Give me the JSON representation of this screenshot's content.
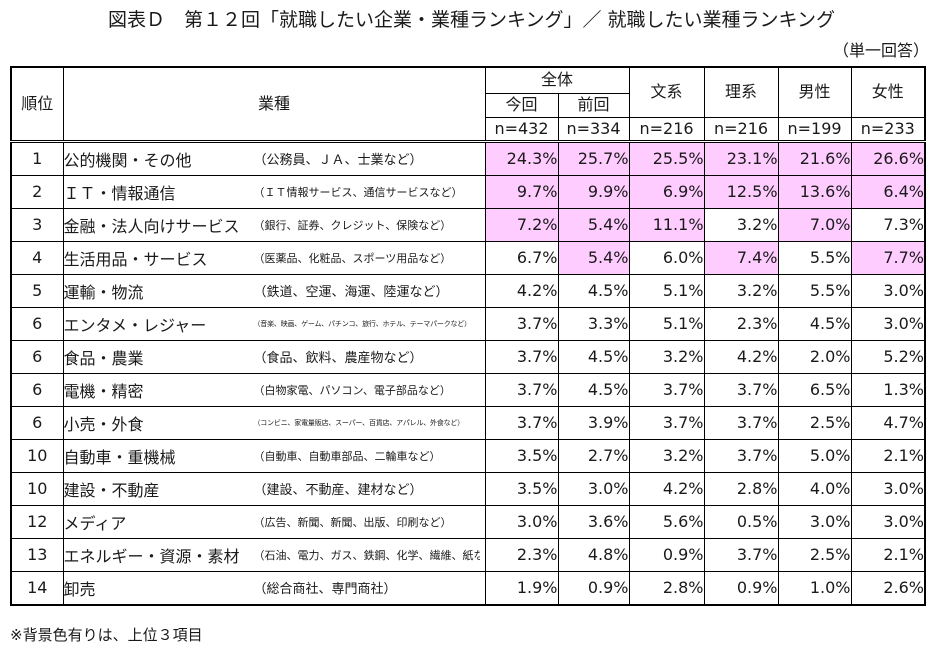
{
  "title": "図表Ｄ　第１２回「就職したい企業・業種ランキング」／ 就職したい業種ランキング",
  "unit": "（単一回答）",
  "colors": {
    "highlight": "#ffccff",
    "border": "#000000"
  },
  "headers": {
    "rank": "順位",
    "industry": "業種",
    "overall": "全体",
    "current": "今回",
    "previous": "前回",
    "current_n": "n=432",
    "previous_n": "n=334",
    "humanities": "文系",
    "humanities_n": "n=216",
    "science": "理系",
    "science_n": "n=216",
    "male": "男性",
    "male_n": "n=199",
    "female": "女性",
    "female_n": "n=233"
  },
  "rows": [
    {
      "rank": "1",
      "name": "公的機関・その他",
      "examples": "（公務員、ＪＡ、士業など）",
      "ex_size": "l",
      "values": [
        "24.3%",
        "25.7%",
        "25.5%",
        "23.1%",
        "21.6%",
        "26.6%"
      ],
      "highlight": [
        true,
        true,
        true,
        true,
        true,
        true
      ]
    },
    {
      "rank": "2",
      "name": "ＩＴ・情報通信",
      "examples": "（ＩＴ情報サービス、通信サービスなど）",
      "ex_size": "m",
      "values": [
        "9.7%",
        "9.9%",
        "6.9%",
        "12.5%",
        "13.6%",
        "6.4%"
      ],
      "highlight": [
        true,
        true,
        true,
        true,
        true,
        true
      ]
    },
    {
      "rank": "3",
      "name": "金融・法人向けサービス",
      "examples": "（銀行、証券、クレジット、保険など）",
      "ex_size": "m",
      "values": [
        "7.2%",
        "5.4%",
        "11.1%",
        "3.2%",
        "7.0%",
        "7.3%"
      ],
      "highlight": [
        true,
        true,
        true,
        false,
        true,
        false
      ]
    },
    {
      "rank": "4",
      "name": "生活用品・サービス",
      "examples": "（医薬品、化粧品、スポーツ用品など）",
      "ex_size": "m",
      "values": [
        "6.7%",
        "5.4%",
        "6.0%",
        "7.4%",
        "5.5%",
        "7.7%"
      ],
      "highlight": [
        false,
        true,
        false,
        true,
        false,
        true
      ]
    },
    {
      "rank": "5",
      "name": "運輸・物流",
      "examples": "（鉄道、空運、海運、陸運など）",
      "ex_size": "l",
      "values": [
        "4.2%",
        "4.5%",
        "5.1%",
        "3.2%",
        "5.5%",
        "3.0%"
      ],
      "highlight": [
        false,
        false,
        false,
        false,
        false,
        false
      ]
    },
    {
      "rank": "6",
      "name": "エンタメ・レジャー",
      "examples": "（音楽、映画、ゲーム、パチンコ、旅行、ホテル、テーマパークなど）",
      "ex_size": "s",
      "values": [
        "3.7%",
        "3.3%",
        "5.1%",
        "2.3%",
        "4.5%",
        "3.0%"
      ],
      "highlight": [
        false,
        false,
        false,
        false,
        false,
        false
      ]
    },
    {
      "rank": "6",
      "name": "食品・農業",
      "examples": "（食品、飲料、農産物など）",
      "ex_size": "l",
      "values": [
        "3.7%",
        "4.5%",
        "3.2%",
        "4.2%",
        "2.0%",
        "5.2%"
      ],
      "highlight": [
        false,
        false,
        false,
        false,
        false,
        false
      ]
    },
    {
      "rank": "6",
      "name": "電機・精密",
      "examples": "（白物家電、パソコン、電子部品など）",
      "ex_size": "m",
      "values": [
        "3.7%",
        "4.5%",
        "3.7%",
        "3.7%",
        "6.5%",
        "1.3%"
      ],
      "highlight": [
        false,
        false,
        false,
        false,
        false,
        false
      ]
    },
    {
      "rank": "6",
      "name": "小売・外食",
      "examples": "（コンビニ、家電量販店、スーパー、百貨店、アパレル、外食など）",
      "ex_size": "s",
      "values": [
        "3.7%",
        "3.9%",
        "3.7%",
        "3.7%",
        "2.5%",
        "4.7%"
      ],
      "highlight": [
        false,
        false,
        false,
        false,
        false,
        false
      ]
    },
    {
      "rank": "10",
      "name": "自動車・重機械",
      "examples": "（自動車、自動車部品、二輪車など）",
      "ex_size": "m",
      "values": [
        "3.5%",
        "2.7%",
        "3.2%",
        "3.7%",
        "5.0%",
        "2.1%"
      ],
      "highlight": [
        false,
        false,
        false,
        false,
        false,
        false
      ]
    },
    {
      "rank": "10",
      "name": "建設・不動産",
      "examples": "（建設、不動産、建材など）",
      "ex_size": "l",
      "values": [
        "3.5%",
        "3.0%",
        "4.2%",
        "2.8%",
        "4.0%",
        "3.0%"
      ],
      "highlight": [
        false,
        false,
        false,
        false,
        false,
        false
      ]
    },
    {
      "rank": "12",
      "name": "メディア",
      "examples": "（広告、新聞、新聞、出版、印刷など）",
      "ex_size": "m",
      "values": [
        "3.0%",
        "3.6%",
        "5.6%",
        "0.5%",
        "3.0%",
        "3.0%"
      ],
      "highlight": [
        false,
        false,
        false,
        false,
        false,
        false
      ]
    },
    {
      "rank": "13",
      "name": "エネルギー・資源・素材",
      "examples": "（石油、電力、ガス、鉄鋼、化学、繊維、紙など）",
      "ex_size": "m",
      "values": [
        "2.3%",
        "4.8%",
        "0.9%",
        "3.7%",
        "2.5%",
        "2.1%"
      ],
      "highlight": [
        false,
        false,
        false,
        false,
        false,
        false
      ]
    },
    {
      "rank": "14",
      "name": "卸売",
      "examples": "（総合商社、専門商社）",
      "ex_size": "l",
      "values": [
        "1.9%",
        "0.9%",
        "2.8%",
        "0.9%",
        "1.0%",
        "2.6%"
      ],
      "highlight": [
        false,
        false,
        false,
        false,
        false,
        false
      ]
    }
  ],
  "footnote": "※背景色有りは、上位３項目"
}
